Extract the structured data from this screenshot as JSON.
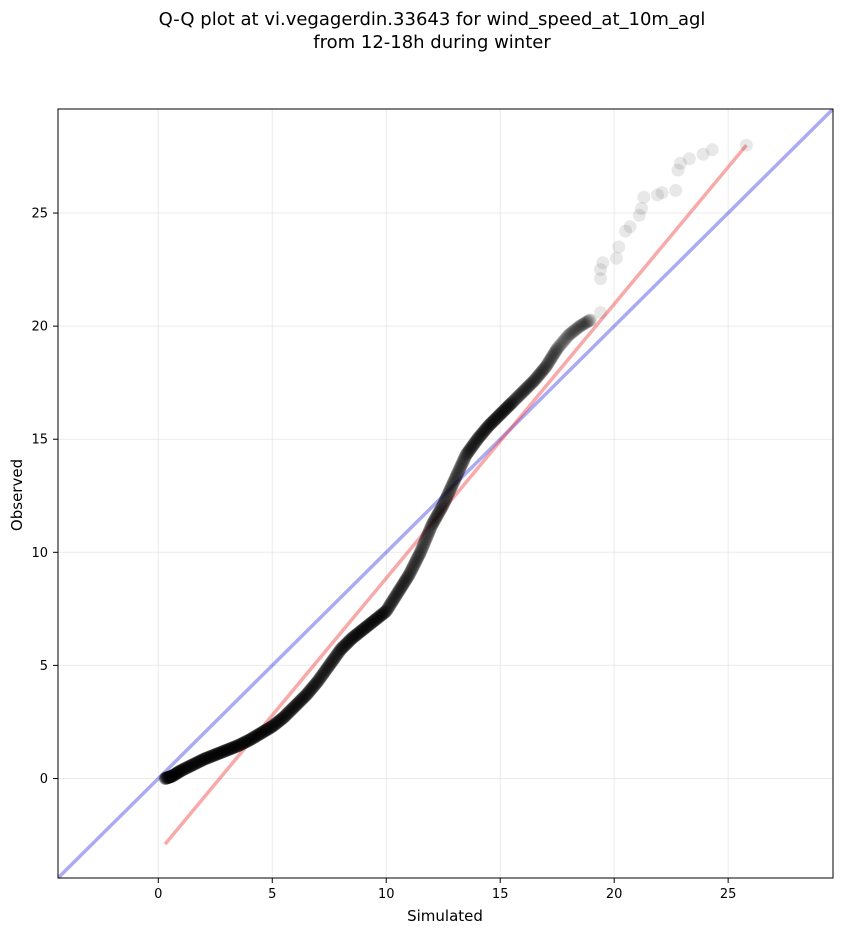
{
  "chart_data": {
    "type": "scatter",
    "title_lines": [
      "Q-Q plot at vi.vegagerdin.33643 for wind_speed_at_10m_agl",
      "from 12-18h during winter"
    ],
    "xlabel": "Simulated",
    "ylabel": "Observed",
    "xlim": [
      -4.4,
      29.6
    ],
    "ylim": [
      -4.4,
      29.6
    ],
    "xticks": [
      0,
      5,
      10,
      15,
      20,
      25
    ],
    "yticks": [
      0,
      5,
      10,
      15,
      20,
      25
    ],
    "grid": true,
    "identity_line": {
      "from": [
        -4.4,
        -4.4
      ],
      "to": [
        29.6,
        29.6
      ],
      "color": "#0000dd"
    },
    "fit_line": {
      "from": [
        0.3,
        -2.9
      ],
      "to": [
        25.8,
        28.0
      ],
      "color": "#ee3333"
    },
    "point_color": "#000000",
    "quantile_curve": [
      [
        0.3,
        0.0
      ],
      [
        0.6,
        0.1
      ],
      [
        1.0,
        0.35
      ],
      [
        1.5,
        0.6
      ],
      [
        2.0,
        0.85
      ],
      [
        2.5,
        1.05
      ],
      [
        3.0,
        1.25
      ],
      [
        3.5,
        1.45
      ],
      [
        4.0,
        1.7
      ],
      [
        4.5,
        2.0
      ],
      [
        5.0,
        2.3
      ],
      [
        5.5,
        2.7
      ],
      [
        6.0,
        3.2
      ],
      [
        6.5,
        3.7
      ],
      [
        7.0,
        4.3
      ],
      [
        7.5,
        5.0
      ],
      [
        8.0,
        5.7
      ],
      [
        8.5,
        6.2
      ],
      [
        9.0,
        6.6
      ],
      [
        9.5,
        7.0
      ],
      [
        10.0,
        7.4
      ],
      [
        10.5,
        8.2
      ],
      [
        11.0,
        9.0
      ],
      [
        11.5,
        10.0
      ],
      [
        12.0,
        11.2
      ],
      [
        12.5,
        12.1
      ],
      [
        13.0,
        13.2
      ],
      [
        13.5,
        14.3
      ],
      [
        14.0,
        15.0
      ],
      [
        14.5,
        15.6
      ],
      [
        15.0,
        16.1
      ],
      [
        15.5,
        16.6
      ],
      [
        16.0,
        17.1
      ],
      [
        16.5,
        17.6
      ],
      [
        17.0,
        18.2
      ],
      [
        17.5,
        19.0
      ],
      [
        18.0,
        19.6
      ],
      [
        18.5,
        20.0
      ],
      [
        19.0,
        20.3
      ]
    ],
    "upper_tail": [
      [
        19.4,
        20.6
      ],
      [
        19.4,
        22.1
      ],
      [
        19.4,
        22.5
      ],
      [
        19.5,
        22.8
      ],
      [
        20.1,
        23.0
      ],
      [
        20.2,
        23.5
      ],
      [
        20.5,
        24.2
      ],
      [
        20.7,
        24.4
      ],
      [
        21.1,
        24.9
      ],
      [
        21.2,
        25.2
      ],
      [
        21.3,
        25.7
      ],
      [
        21.9,
        25.8
      ],
      [
        22.1,
        25.9
      ],
      [
        22.7,
        26.0
      ],
      [
        22.8,
        26.9
      ],
      [
        22.9,
        27.2
      ],
      [
        23.3,
        27.4
      ],
      [
        23.9,
        27.6
      ],
      [
        24.3,
        27.8
      ],
      [
        25.8,
        28.0
      ]
    ]
  }
}
